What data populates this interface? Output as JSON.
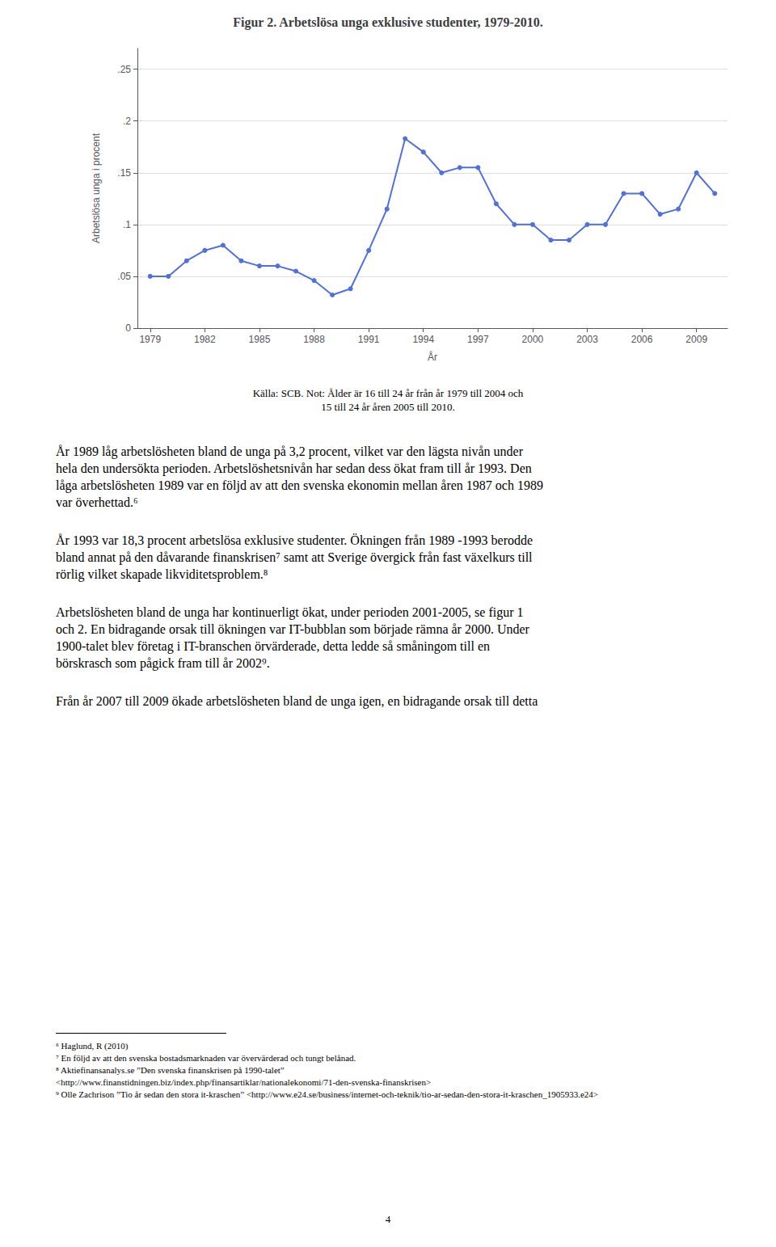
{
  "chart_data": {
    "type": "line",
    "title": "Figur 2. Arbetslösa unga exklusive studenter, 1979-2010.",
    "xlabel": "År",
    "ylabel": "Arbetslösa unga i procent",
    "x": [
      1979,
      1980,
      1981,
      1982,
      1983,
      1984,
      1985,
      1986,
      1987,
      1988,
      1989,
      1990,
      1991,
      1992,
      1993,
      1994,
      1995,
      1996,
      1997,
      1998,
      1999,
      2000,
      2001,
      2002,
      2003,
      2004,
      2005,
      2006,
      2007,
      2008,
      2009,
      2010
    ],
    "values": [
      0.05,
      0.05,
      0.065,
      0.075,
      0.08,
      0.065,
      0.06,
      0.06,
      0.055,
      0.046,
      0.032,
      0.038,
      0.075,
      0.115,
      0.183,
      0.17,
      0.15,
      0.155,
      0.155,
      0.12,
      0.1,
      0.1,
      0.085,
      0.085,
      0.1,
      0.1,
      0.13,
      0.13,
      0.11,
      0.115,
      0.15,
      0.13
    ],
    "xlim": [
      1978.3,
      2010.7
    ],
    "xticks": [
      1979,
      1982,
      1985,
      1988,
      1991,
      1994,
      1997,
      2000,
      2003,
      2006,
      2009
    ],
    "ylim": [
      0,
      0.27
    ],
    "yticks": [
      0,
      {
        "value": 0.05,
        "label": ".05"
      },
      {
        "value": 0.1,
        "label": ".1"
      },
      {
        "value": 0.15,
        "label": ".15"
      },
      {
        "value": 0.2,
        "label": ".2"
      },
      {
        "value": 0.25,
        "label": ".25"
      }
    ],
    "grid": true,
    "marker": "circle",
    "source": [
      "Källa: SCB. Not: Ålder är 16 till 24 år från år 1979 till 2004 och",
      "15 till 24 år åren 2005 till 2010."
    ],
    "body": [
      [
        "År 1989 låg arbetslösheten bland de unga på 3,2 procent, vilket var den lägsta nivån under",
        "hela den undersökta perioden. Arbetslöshetsnivån har sedan dess ökat fram till år 1993. Den",
        "låga arbetslösheten 1989 var en följd av att den svenska ekonomin mellan åren 1987 och 1989",
        "var överhettad.⁶"
      ],
      [
        "År 1993 var 18,3 procent arbetslösa exklusive studenter. Ökningen från 1989 -1993 berodde",
        "bland annat på den dåvarande finanskrisen⁷ samt att Sverige övergick från fast växelkurs till",
        "rörlig vilket skapade likviditetsproblem.⁸"
      ],
      [
        "Arbetslösheten bland de unga har kontinuerligt ökat, under perioden 2001-2005, se figur 1",
        "och 2. En bidragande orsak till ökningen var IT-bubblan som började rämna år 2000. Under",
        "1900-talet blev företag i IT-branschen örvärderade, detta ledde så småningom till en",
        "börskrasch som pågick fram till år 2002⁹."
      ],
      [
        "Från år 2007 till 2009 ökade arbetslösheten bland de unga igen, en bidragande orsak till detta"
      ]
    ],
    "footnotes": [
      "⁶ Haglund, R (2010)",
      "⁷ En följd av att den svenska bostadsmarknaden var övervärderad och tungt belånad.",
      "⁸ Aktiefinansanalys.se ”Den svenska finanskrisen på 1990-talet”",
      "<http://www.finanstidningen.biz/index.php/finansartiklar/nationalekonomi/71-den-svenska-finanskrisen>",
      "⁹ Olle Zachrison ”Tio år sedan den stora it-kraschen” <http://www.e24.se/business/internet-och-teknik/tio-ar-sedan-den-stora-it-kraschen_1905933.e24>"
    ],
    "page_number": "4"
  }
}
